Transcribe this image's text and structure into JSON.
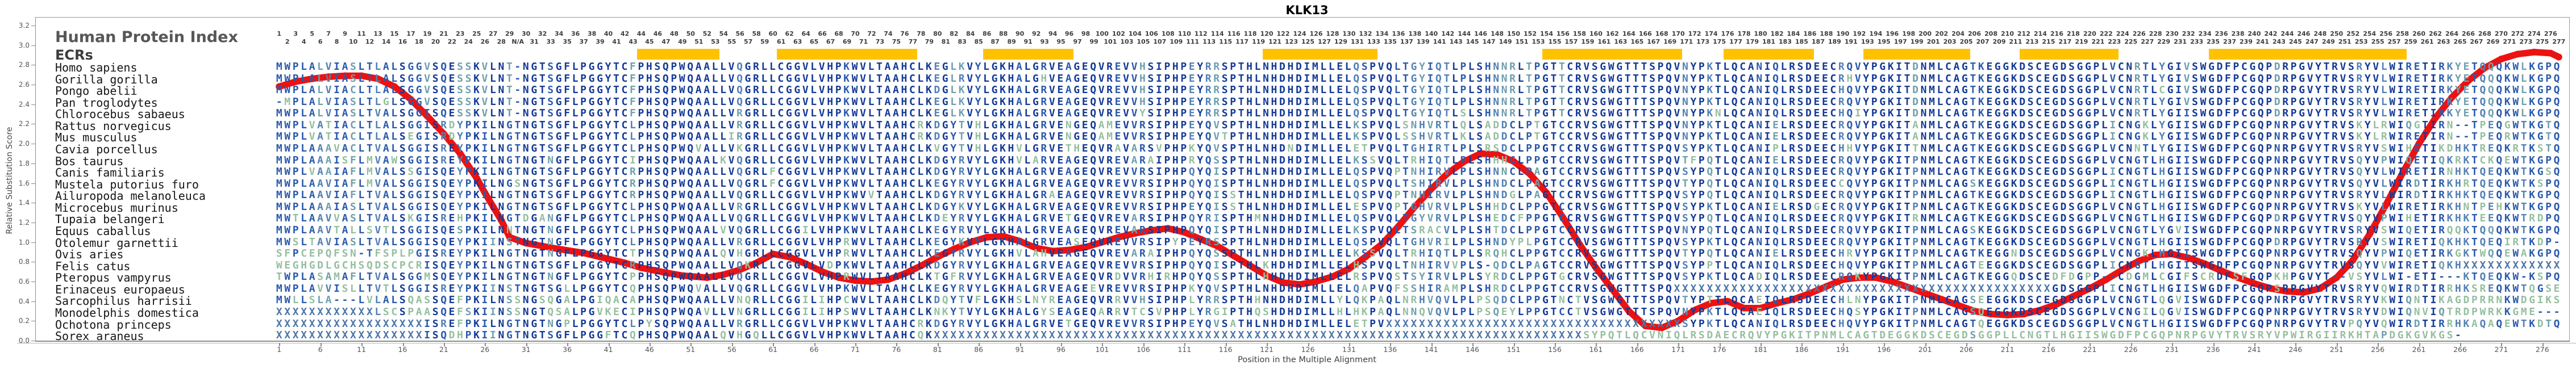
{
  "title": "KLK13",
  "panel": {
    "title": "Human Protein Index",
    "subtitle": "ECRs"
  },
  "y_axis": {
    "label": "Relative Substitution Score",
    "min": 0.0,
    "max": 3.2,
    "tick_step": 0.2
  },
  "x_axis": {
    "label": "Position in the Multiple Alignment",
    "tick_start": 1,
    "tick_step": 5,
    "tick_end": 276
  },
  "numbering": {
    "na_column": 30,
    "max_human_position": 277,
    "na_label": "N/A"
  },
  "colors": {
    "ecr_highlight": "#FFC200",
    "curve": "#ec1212",
    "border": "#9a9a9a",
    "conservation_palette": [
      "#143a95",
      "#2a5aac",
      "#5381b4",
      "#6fa0ad",
      "#95bf9f"
    ],
    "unknown_x": "#4d77a9",
    "gap": "#2a5aac"
  },
  "ecr_regions": [
    {
      "start": 45,
      "end": 54
    },
    {
      "start": 62,
      "end": 78
    },
    {
      "start": 87,
      "end": 97
    },
    {
      "start": 121,
      "end": 134
    },
    {
      "start": 155,
      "end": 171
    },
    {
      "start": 177,
      "end": 187
    },
    {
      "start": 194,
      "end": 206
    },
    {
      "start": 213,
      "end": 224
    },
    {
      "start": 236,
      "end": 259
    }
  ],
  "alignment": {
    "length": 278,
    "species": [
      {
        "name": "Homo sapiens",
        "seq": "MWPLALVIASLTLALSGGVSQESSKVLNT-NGTSGFLPGGYTCFPHSQPWQAALLVQGRLLCGGVLVHPKWVLTAAHCLKEGLKVYLGKHALGRVEAGEQVREVVHSIPHPEYRRSPTHLNHDHDIMLLELQSPVQLTGYIQTLPLSHNNRLTPGTTCRVSGWGTTTSPQVNYPKTLQCANIQLRSDEECRQVYPGKITDNMLCAGTKEGGKDSCEGDSGGPLVCNRTLYGIVSWGDFPCGQPDRPGVYTRVSRYVLWIRETIRKYETQQQKWLKGPQ"
      },
      {
        "name": "Gorilla gorilla",
        "seq": "MWPLALVIASLTLALSGGVSQESSKVLNT-NGTSGFLPGGYTCFPHSQPWQAALLVQGRLLCGGVLVHPKWVLTAAHCLKEGLRVYLGKHALGHVEAGEQVREVVHSIPHPEYRRSPTHLNHDHDIMLLELQSPVQLTGYIQTLPLSHNNRLTPGTTCRVSGWGTTTSPQVNYPKTLQCANIQLRSDEECRHVYPGKITDNMLCAGTKEGGKDSCEGDSGGPLVCNRTLYGIVSWGDFPCGQPDRPGVYTRVSRYVLWIRETIRKYETQQQKWLKGPQ"
      },
      {
        "name": "Pongo abelii",
        "seq": "MWPLALVIACLTLALSGGVSQESSKVLNT-NGTSGFLPGGYTCFPHSQPWQAALLVQGRLLCGGVLVHPKWVLTAAHCLKDGLKVYLGKHALGRVEAGEQVREVVHSIPHPEYRRSPTHLNHDHDIMLLELQSPVQLTGYIQTLPLSHNNRLTPGTTCRVSGWGTTTSPQVNYPKTLQCANIQLRSDEECHQVYPGKITDNMLCAGTKEGGKDSCEGDSGGPLVCNRTLCGIVSWGDFPCGQPDRPGVYTRVSRYVLWIRETIRKYETQQQKWLKGPQ"
      },
      {
        "name": "Pan troglodytes",
        "seq": "-MPLALVIASLTLGLSGGVSQESSKVLNT-NGTSGFLPGGYTCFPHSQPWQAALLVQGRLLCGGVLVHPKWVLTAAHCLKEGLKVYLGKHALGRVEAGEQVREVVHSIPHPEYRRSPTHLNHDHDIMLLELQSPVQLTGYIQTLPLSHNNRLTPGTTCRVSGWGTTTSPQVNYPKTLQCANIQLRSDEECRQVYPGKITDNMLCAGTKEGGKDSCEGDSGGPLVCNRTLYGIVSWGDFPCGQPDRPGVYTRVSRYVLWIRETIRKYETQQQKWLKGPQ"
      },
      {
        "name": "Chlorocebus sabaeus",
        "seq": "MWPLALVIASLTVALSGGISQESSKVLNT-NGTSGFLPGGYTCFPHSQPWQAALLVRGRLLCGGVLVHPKWVLTAAHCLKEGLKVYLGKHALGRVEAGEQVREVVYSIPHPEYRRSPTHLNHDHDIMLLELQSPVQLTGYIQTLSLSHNNRLTPGTTCRVSGWGTTTSPQVNYPKNLQCANIQLRSDEECHQIYPGKITDNMLCAGTKEGGKDSCEGDSGGPLVCNRTLYGIISWGDFPCGQPDRPGVYTRVSRYVLWIRETIRKYETQQQKWLKGPQ"
      },
      {
        "name": "Rattus norvegicus",
        "seq": "MWPLVATIACLTLALSGGISRDYPKILNGTNGTSGFLPGGYTCLPHSQPWQAALLVRGRLLCGGVLVHPKWVLTAAHCRKDGYTVHLGKHALGRVENGEQAMEVVRSIPHPEYQVSPTHLNHDHDIMLLELKSPVQLSNHVRTLQLSADDCLPTGTCCRVSGWGTTTSPQVNYPKTLQCANIELRSDEECRQVYPGKITANMLCAGTKEGGKDSCEGDSGGPLICNGKLYGIISWGDFPCGQPNRPGVYTRVSKYLRWIQGTIRN--TPEQGWTKGTQ"
      },
      {
        "name": "Mus musculus",
        "seq": "MWPLVATIACLTLALSEGISRDYPKILNGTNGTSGFLPGGYTCLPHSQPWQAALLIRGRLLCGGVLVHPKWVLTAAHCRKDGYTVHLGKHALGRVENGEQAMEVVRSIPHPEYQVTPTHLNHDHDIMLLELKSPVQLSSHVRTLKLSADDCLPTGTCCRVSGWGTTTSPQVNYPKTLQCANIELRSDEECRQVYPGKITANMLCAGTKEGGKDSCEGDSGGPLICNGKLYGIISWGDFPCGQPNRPGVYTRVSKYLRWIRETIRN--TPEQRWTKGTQ"
      },
      {
        "name": "Cavia porcellus",
        "seq": "MWPLAAAVACLTVALSGGISREYPKILNGTNGTSGFLPGGYTCLPHSQPWQVALLVKGRLLCGGVLVHPKWVLTAAHCLKVGYTVHLGKHVLGRVETHEQVRAVARSVPHPKYQVSPTHLNHDNDIMLLELETPVQLTGHIRTLPLSRSDCLPPGTCCRVSGWGTTTSPQVSYPKTLQCANIPLRSDEECHHVYPGKITTNMLCAGTKEGGKDSCEGDSGGPLVCNNTLYGIISWGDFPCGQPNRPGVYTRVSRYVSWIHETIKDHKTREQKRTKSTQ"
      },
      {
        "name": "Bos taurus",
        "seq": "MWPLAAAISFLMVAWSGGISREYPKILNGTNGTNGFLPGGYTCIPHSQPWQAALKVQGRLLCGGVLVHPKWVLTAAHCLKDGYRVYLGKHVLARVEAGEQVREVARAIPHPRYQSSPTHLNHDHDIMLLELKSSVQLTRHIQTLPLSHHHCLPPGTCCRVSGWGTTTSPQVTFPQTLQCANIELRSDEECRQVYPGKITPNMLCAGTKEGGKDSCEGDSGGPLVCNGTLHGIISWGDFPCGQPNRPGVYTRVSQYVPWIQETIQKRKTCKQEWTKGPQ"
      },
      {
        "name": "Canis familiaris",
        "seq": "MWPLVAAIAFLMVALSSGISQEYPKILNGTNGTSGFLPGGYTCRPHSQPWQAALLVQGRLFCGGVLVHPKWVLTAAHCLKDGYRVYLGKHALGRVEAGEQVREVVRSIPHPQYQISPTHLNHDHDIMLLELQSPVQPTNHIRVLPLSHNNCLPAGTCCRVSGWGTTTSPQVSYPQTLQCANIQLRSDEECRQVYPGKITPNMLCAGTKEGGKDSCEGDSGGPLICNGTLHGIISWGDFPCGQPNRPGVYTRVSQYVLWIRETIRNHKTQEQKWTKGSQ"
      },
      {
        "name": "Mustela putorius furo",
        "seq": "MWPLAAVIAFLMVALSGGISQEYPKILNGSNGTSGFLPGGYTCRPHSQPWQAALLVQGRLFCGGVLVHPKWVLTAAHCLKEGYRVYLGKHALGRVEAGEQVREVVRSIPHPQYQISPTHLNHDHDIMLLELQSPVQLTSHIRVLPLSHNDCLPAGTCCRVSGWGTTTSPQVTYPQTLQCANIQLRSDEECCQVYPGKITPNMLCAGSKEGGKDSCEGDSGGPLICNGTLHGIISWGDFPCGQPNRPGVYTRVSQYVLWIRDTIRKHRTQEQKWTKSPQ"
      },
      {
        "name": "Ailuropoda melanoleuca",
        "seq": "MWPLAAVIAFLTVALSGGISQEYPKILNGTNGTSGFLPGGYTCRPHSQPWQAALLVQGRLLCGGVLVHPKWVVTAAHCLKDGYRVYLGKHALGRAEAGEQVREVVRSIPHPQYQISSTHLNHDHDIMLLELQSPVQPTNHIRVLPLSHNDGLPAGTCCRVSGWGTTTSPQVSYPQTLQCANIQLRSDEECRQVYPGKITPNMLCAGTKEGGKDSCEGDSGGPLICNGTLHGIISWGDFPCGQPNRPGVYTRVSRYVLWIRDTIRKHKTQEQKWTKGPQ"
      },
      {
        "name": "Microcebus murinus",
        "seq": "MWPLAAAIASLTVALSGGISQEYPKILNGTNGTSGFLPGGYTCLPHSQPWQAALLVRGRLLCGGVLVHPKWVLTAAHCLKDGYKVYLGKHALGRVEAGEQVREVVRSIPHPEYQISSTHLNHDHDIMLLELESPVQPTGHVRVLPLSHHDCLPPGTCCRVSGWGTTTSPQVSYPKTLQCANIELRSDGECRQVYPGKITPNMLCAGTKEGGKDSCEGDSGGPLVCNGTLHGIISWGDFPCGQPNRPGVYTRVSKYVLWIRETIRKHNTPEHKWTKGPQ"
      },
      {
        "name": "Tupaia belangeri",
        "seq": "MWTLAAVVASLTVALSKGISREHPKILNGTDGANGFLPGGYTCLPHSQPWQAALLVQGRLLCGGVLVHPKWVLTAAHCLKDEYRVYLGKHALGRVETGEQVREVARSIPHPQYRISPTHMNHDHDIMLLELQSPVQLTGYVRVLPLSHEDCFPPGTCCRVSGWGTTTSPQVSYPQTLQCANIQLRSDEECRQVYPGKITRNMLCAGTKEGGKDSCEGDSGGPLVCNGTLHGIISWGDFPCGQPDRPGVYTRVSQYVPWIHETIRKHKTEEQKWTRDPQ"
      },
      {
        "name": "Equus caballus",
        "seq": "MWPLAAVTALLSVTLSGGISQESPKILNNTNGTNGFLPGGYTCLPHSQPWQAALVVQGRLLCGGILVHPKWVLTAAHCLKEGYRVYLGKHALGRVEAGEQVREVARSIPHPQYQISPTHLNHDHDIMLLELKSPVQLTSRACVLPLSHTDCLPPGTCCRVSGWGTTTSPQVNYPQTLQCANIQLRSDEECRQVYPGKITPNMLCAGSKEGGKDSCEGDSGGPLVCNGTLYGVISWGDFPCGQPNRPGVYTRVSRYVSWIQETIRQQKTQQQKWTKGPQ"
      },
      {
        "name": "Otolemur garnettii",
        "seq": "MWSLTAVIASLTVALSGGISQEYPKIINSTNGTNGFLPGGYTCLPHSQPWQAALLVRGRLLCGGVLVHPRWVLTAAHCLKEGYKVYLGKHALGRVEASEQVREVVRSIPYPEYRSSPTHLNHDHDIMLLELQSPVQLTGHVRILPLSHNDYPLPGTCCRVSGWGTTTSPQVSYPKTLQCANIQLRSDEECRQVYPGKITPNMLCAGTKEGGKDSCEGDSGGPLVCNGTLHGIISWGDFPCGQPDRPGVYTRVSRYVSWIRETIQKHKTQEQIRTKDP-"
      },
      {
        "name": "Ovis aries",
        "seq": "SFPCEPQFSN-TFSPLPGISREYPKILNGTNGTNGFLPGGYTCTPHSQPWQAALQVHGRLLCGGVLVHPRWVLTAAHCLKEGYRVYLGKHVLAHVEAGEQVREVARAIPHPQYQSSPTHLNHDHDIMLLELKSSVQLTRHIQTLPLSRQHCLPPGTCCRVSGWGTTTSPQVTYPQTLQCANIELRSDEECHRVYPGKITPNMLCAGTKEGGNDSCEGDSGGPLVCNGKLHGIISWGDFPCGQPNRPGVYTRVSQYVPWIQETIRKGKTWQQEWAKGPQ"
      },
      {
        "name": "Felis catus",
        "seq": "WEGHGDLGCHSQDSCPCRISQEYPKILNGTNGTSGFLPGGYTCRPHSQPWQAALLVQKRLLCGGVLVDPKWVLTAAHCLKDGYRVYLGKHALGRVEAGEQVREVVRSIPHPQYQISPTHLKHDHDIMLLELHSPVQLTNHIRVVPLS-QDCLPAGTCCRVSGWGTTTSPQVSYPPTLQCANIQLRSDEECHQVYPGKITPNMLCAGTEEGGKDSCEGDSGGPLICNGTLHGIISWGDFPCGQPNRPGVYTRVSQYVVWIRETIQKHXXXXXXXXXXXX"
      },
      {
        "name": "Pteropus vampyrus",
        "seq": "TWPLASAMAFLTVALSGGMSQEYPKILNGTNGTNGFLPGGYTCPPHSQPWQAALLVQGRLLCGGVLVHPRWVLTAAHCLKTGFRVYLGKHALGRVEAGEQVRDVVRHIRHPQYQSSPTHLHHDHDIMLLELRSPVQSTSYIRVLPLSYRDCLPPGTGCRVSGWGTTTSPQVSYPKTLQCADIQLRSDEECRQKYPGKITPNMLCAGTKEGGQDSCEDFDGPP--CDGMLCGIFSCRDFSFGQPKHPGVYT--VSYVLWI-ETI---KTQEQKW-KSPQ"
      },
      {
        "name": "Erinaceus europaeus",
        "seq": "MWPLAVVISLLTVTLSGGISREYPKIINSTNGTSGLLPGGYTCQPHSQPWQVALLVQGRLLCGGVLVHPKWVLTAAHCLKEGYRVYLGKHALGRVEAGEEVREVVRSIPHPKYQVSPTHLNHDHDIMLLELQAPVQFSSHIRAMPLSHRDCLPPGTCCRVSGWGTTTSPQXXXXXXXXXXXXXXXXXXXXXXXXXXXXXXXXXXXXXXXXXXXXXXGDSGGPLICNGTLHGIISWGDFPCGQPSRPGVYTRVSRYVQWIRDTIRRHKSREQKWTQGSE"
      },
      {
        "name": "Sarcophilus harrisii",
        "seq": "MWLLSLA---LVLALSQASSQEFPKILNSSNGSQGALPGIQACAPHSQPWQAALLVNQRLLCGGILIHPCWVLTAAHCLKDQYTVFLGKHSLNYREAGEQVRRVVHSIPHPLYRRSPTHHNHDHDIMLLYLQKPAQLNRHVQVLPLPSQDCLPPGTNCTVSGWGTTTSPQVTYPTTLQCAEIQLRSDEECHLNYPGKITPNMLCAGSEEGGKDSCEGDSGGPLVCNGTLQGVISWGDFPCGQPNRPGVYTRVSRYVKWIQNTIKAGDPRRNKWDGIKS"
      },
      {
        "name": "Monodelphis domestica",
        "seq": "XXXXXXXXXXXXLSCSPAASQEFSKIINSSNGTQSALPGVKECIPHSQPWQAVLLVNGRLLCGGILIHPSWVLTAAHCLKNKYTVYLGKHALGYSEAGEQARRVTCSVPHPLYRGIPTHQSHDHDIMLLHLHKPAQLNNQVQVLPLPSQEYLPPGTCCTVSGWGTTTSPQVNYPKTLQCAEIQLRSDEECHQSYPGKITPNMLCAGSQEGGKDSCEGDSGGPLVCNGILQGVISWGDFPCGQPNRPGVYTRVSRYVDWIQNVIQTRDPWRKKGME---"
      },
      {
        "name": "Ochotona princeps",
        "seq": "XXXXXXXXXXXXXXXXXXISREFPKILNGTNGTNGPLPGGYTCLPYSQPWQAALLVRGRLLCGGVLVHPKWVLTAAHCRKDGYRVYLGKHALGRVETGEQVREVVRSIPHPEYQVSATHLNHDHDIMLLELETPVXXXXXXXXXXXXXXXXXXXXXXXXXXXXXXXXXXXXSYPKTLQCANIQLRSDEECHQVYPGKITPNMLCAGTQEGGKDSCEGDSGGPLVCNGTLHGIISWGDFPCGQPNRPGVYTRVPQYVQWIRDTIRRHKAQAQEWTKDTQ"
      },
      {
        "name": "Sorex araneus",
        "seq": "XXXXXXXXXXXXXXXXXXISQDHPKIINGTNGTSGFLPGGFTCQPHSQPWQAALQVHGQLLCGGVLVHPKWVLTAAHCQKXXXXXXXXXXXXXXXXXXXXXXXXXXXXXXXXXXXXXXXXXXXXXXXXXXXXXXXXXXXXXXXXXXXXXXXXXXXXXXXSYPQTLQCVNIQLRSDAECRQVYPGKITPNMLCAGTDEGGKDSCEGDSGGPLLCNGTLHGIISWGDFPCGQPNRPGVYTRVSRYVPWIRGIIRKHTAPDGKGVKGS-"
      }
    ]
  },
  "chart_data": {
    "type": "line",
    "title": "KLK13",
    "xlabel": "Position in the Multiple Alignment",
    "ylabel": "Relative Substitution Score",
    "xlim": [
      1,
      278
    ],
    "ylim": [
      0,
      3.2
    ],
    "grid": false,
    "series": [
      {
        "name": "Relative Substitution Score",
        "color": "#ec1212",
        "points": [
          [
            1,
            2.58
          ],
          [
            3,
            2.63
          ],
          [
            5,
            2.66
          ],
          [
            7,
            2.68
          ],
          [
            9,
            2.69
          ],
          [
            11,
            2.69
          ],
          [
            13,
            2.66
          ],
          [
            15,
            2.58
          ],
          [
            17,
            2.45
          ],
          [
            19,
            2.28
          ],
          [
            21,
            2.1
          ],
          [
            23,
            1.9
          ],
          [
            25,
            1.65
          ],
          [
            26,
            1.5
          ],
          [
            27,
            1.36
          ],
          [
            28,
            1.22
          ],
          [
            29,
            1.05
          ],
          [
            31,
            0.99
          ],
          [
            33,
            0.96
          ],
          [
            35,
            0.93
          ],
          [
            38,
            0.89
          ],
          [
            40,
            0.85
          ],
          [
            43,
            0.79
          ],
          [
            45,
            0.74
          ],
          [
            48,
            0.69
          ],
          [
            50,
            0.66
          ],
          [
            53,
            0.64
          ],
          [
            55,
            0.67
          ],
          [
            57,
            0.72
          ],
          [
            59,
            0.79
          ],
          [
            61,
            0.88
          ],
          [
            63,
            0.85
          ],
          [
            65,
            0.78
          ],
          [
            67,
            0.7
          ],
          [
            69,
            0.64
          ],
          [
            71,
            0.61
          ],
          [
            73,
            0.6
          ],
          [
            75,
            0.62
          ],
          [
            77,
            0.68
          ],
          [
            79,
            0.76
          ],
          [
            81,
            0.85
          ],
          [
            83,
            0.93
          ],
          [
            85,
            1.0
          ],
          [
            87,
            1.05
          ],
          [
            89,
            1.06
          ],
          [
            91,
            1.01
          ],
          [
            93,
            0.94
          ],
          [
            95,
            0.91
          ],
          [
            97,
            0.92
          ],
          [
            99,
            0.95
          ],
          [
            101,
            1.0
          ],
          [
            103,
            1.05
          ],
          [
            105,
            1.09
          ],
          [
            107,
            1.12
          ],
          [
            109,
            1.14
          ],
          [
            111,
            1.1
          ],
          [
            113,
            1.03
          ],
          [
            115,
            0.96
          ],
          [
            117,
            0.86
          ],
          [
            119,
            0.76
          ],
          [
            121,
            0.66
          ],
          [
            123,
            0.59
          ],
          [
            125,
            0.57
          ],
          [
            127,
            0.6
          ],
          [
            129,
            0.65
          ],
          [
            131,
            0.73
          ],
          [
            133,
            0.85
          ],
          [
            135,
            0.98
          ],
          [
            137,
            1.16
          ],
          [
            139,
            1.36
          ],
          [
            141,
            1.54
          ],
          [
            143,
            1.7
          ],
          [
            145,
            1.82
          ],
          [
            147,
            1.9
          ],
          [
            149,
            1.89
          ],
          [
            151,
            1.82
          ],
          [
            153,
            1.69
          ],
          [
            155,
            1.5
          ],
          [
            157,
            1.25
          ],
          [
            159,
            0.98
          ],
          [
            161,
            0.74
          ],
          [
            163,
            0.52
          ],
          [
            165,
            0.3
          ],
          [
            167,
            0.15
          ],
          [
            169,
            0.13
          ],
          [
            171,
            0.2
          ],
          [
            173,
            0.31
          ],
          [
            175,
            0.38
          ],
          [
            177,
            0.4
          ],
          [
            179,
            0.33
          ],
          [
            181,
            0.33
          ],
          [
            183,
            0.38
          ],
          [
            185,
            0.42
          ],
          [
            187,
            0.48
          ],
          [
            189,
            0.55
          ],
          [
            191,
            0.62
          ],
          [
            193,
            0.64
          ],
          [
            195,
            0.64
          ],
          [
            197,
            0.6
          ],
          [
            199,
            0.54
          ],
          [
            201,
            0.48
          ],
          [
            203,
            0.42
          ],
          [
            205,
            0.36
          ],
          [
            207,
            0.3
          ],
          [
            209,
            0.27
          ],
          [
            211,
            0.26
          ],
          [
            213,
            0.27
          ],
          [
            215,
            0.31
          ],
          [
            217,
            0.37
          ],
          [
            219,
            0.45
          ],
          [
            221,
            0.53
          ],
          [
            223,
            0.62
          ],
          [
            225,
            0.72
          ],
          [
            227,
            0.81
          ],
          [
            229,
            0.87
          ],
          [
            231,
            0.88
          ],
          [
            233,
            0.84
          ],
          [
            235,
            0.78
          ],
          [
            237,
            0.71
          ],
          [
            239,
            0.64
          ],
          [
            241,
            0.58
          ],
          [
            243,
            0.53
          ],
          [
            245,
            0.5
          ],
          [
            247,
            0.49
          ],
          [
            249,
            0.53
          ],
          [
            251,
            0.64
          ],
          [
            253,
            0.82
          ],
          [
            255,
            1.08
          ],
          [
            257,
            1.38
          ],
          [
            259,
            1.7
          ],
          [
            261,
            2.0
          ],
          [
            263,
            2.26
          ],
          [
            265,
            2.47
          ],
          [
            267,
            2.64
          ],
          [
            269,
            2.77
          ],
          [
            271,
            2.86
          ],
          [
            273,
            2.91
          ],
          [
            275,
            2.93
          ],
          [
            277,
            2.92
          ],
          [
            278,
            2.88
          ]
        ]
      }
    ]
  }
}
